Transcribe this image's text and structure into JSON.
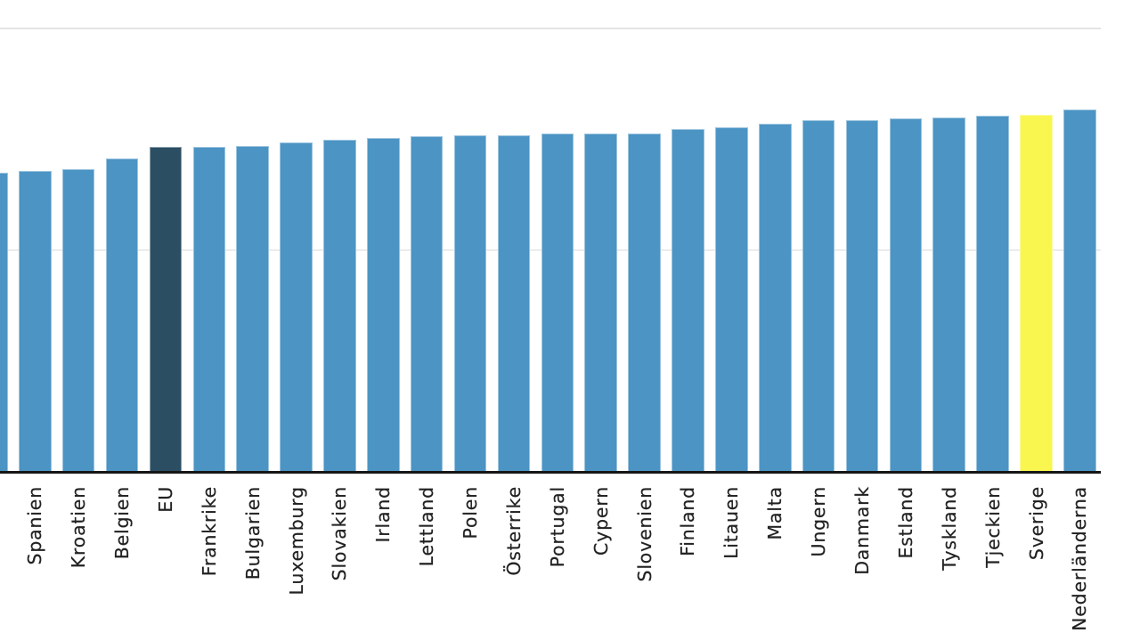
{
  "chart_data": {
    "type": "bar",
    "categories": [
      "",
      "Spanien",
      "Kroatien",
      "Belgien",
      "EU",
      "Frankrike",
      "Bulgarien",
      "Luxemburg",
      "Slovakien",
      "Irland",
      "Lettland",
      "Polen",
      "Österrike",
      "Portugal",
      "Cypern",
      "Slovenien",
      "Finland",
      "Litauen",
      "Malta",
      "Ungern",
      "Danmark",
      "Estland",
      "Tyskland",
      "Tjeckien",
      "Sverige",
      "Nederländerna"
    ],
    "values": [
      67.3,
      67.7,
      68.2,
      70.6,
      73.2,
      73.1,
      73.3,
      74.1,
      74.8,
      75.2,
      75.6,
      75.8,
      75.8,
      76.2,
      76.2,
      76.2,
      77.2,
      77.6,
      78.4,
      79.2,
      79.2,
      79.6,
      79.8,
      80.2,
      80.4,
      81.6
    ],
    "title": "",
    "xlabel": "",
    "ylabel": "",
    "ylim": [
      0,
      100
    ],
    "gridline_values": [
      50,
      100
    ],
    "legend": "none",
    "first_bar_clipped_at_left_edge": true,
    "special_bars": {
      "EU": "eu_bar",
      "Sverige": "highlight_bar"
    }
  },
  "colors": {
    "bar": "#4B94C4",
    "eu_bar": "#2B4E63",
    "highlight_bar": "#F8F64F",
    "axis": "#161616",
    "grid_top": "#E4E4E4",
    "grid_mid": "#ECECEC",
    "label": "#222222",
    "background": "#FFFFFF"
  }
}
